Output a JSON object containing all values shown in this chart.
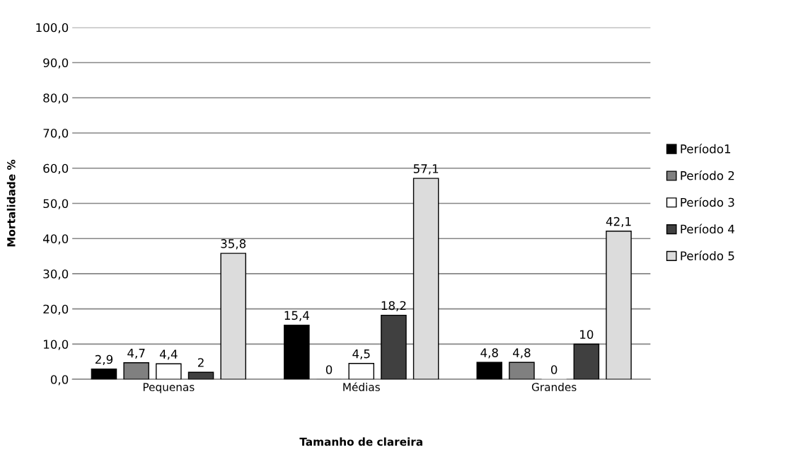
{
  "chart_data": {
    "type": "bar",
    "xlabel": "Tamanho de clareira",
    "ylabel": "Mortalidade %",
    "categories": [
      "Pequenas",
      "Médias",
      "Grandes"
    ],
    "series": [
      {
        "name": "Período1",
        "color": "#000000",
        "values": [
          2.9,
          15.4,
          4.8
        ],
        "value_labels": [
          "2,9",
          "15,4",
          "4,8"
        ]
      },
      {
        "name": "Período 2",
        "color": "#808080",
        "values": [
          4.7,
          0,
          4.8
        ],
        "value_labels": [
          "4,7",
          "0",
          "4,8"
        ]
      },
      {
        "name": "Período 3",
        "color": "#ffffff",
        "values": [
          4.4,
          4.5,
          0
        ],
        "value_labels": [
          "4,4",
          "4,5",
          "0"
        ]
      },
      {
        "name": "Período 4",
        "color": "#404040",
        "values": [
          2,
          18.2,
          10
        ],
        "value_labels": [
          "2",
          "18,2",
          "10"
        ]
      },
      {
        "name": "Período 5",
        "color": "#dcdcdc",
        "values": [
          35.8,
          57.1,
          42.1
        ],
        "value_labels": [
          "35,8",
          "57,1",
          "42,1"
        ]
      }
    ],
    "ylim": [
      0,
      100
    ],
    "yticks": [
      {
        "value": 0,
        "label": "0,0"
      },
      {
        "value": 10,
        "label": "10,0"
      },
      {
        "value": 20,
        "label": "20,0"
      },
      {
        "value": 30,
        "label": "30,0"
      },
      {
        "value": 40,
        "label": "40,0"
      },
      {
        "value": 50,
        "label": "50,0"
      },
      {
        "value": 60,
        "label": "60,0"
      },
      {
        "value": 70,
        "label": "70,0"
      },
      {
        "value": 80,
        "label": "80,0"
      },
      {
        "value": 90,
        "label": "90,0"
      },
      {
        "value": 100,
        "label": "100,0"
      }
    ],
    "grid": "y",
    "legend": "right"
  }
}
